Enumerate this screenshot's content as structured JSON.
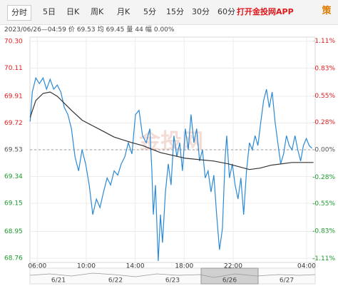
{
  "tabs": [
    "分时",
    "5日",
    "日K",
    "周K",
    "月K",
    "5分",
    "15分",
    "30分",
    "60分"
  ],
  "app_link": "打开金投网APP",
  "strategy_icon": "策",
  "info": {
    "time": "2023/06/26—04:59",
    "items": [
      {
        "label": "价",
        "value": 69.53
      },
      {
        "label": "均",
        "value": 69.45
      },
      {
        "label": "量",
        "value": 44
      },
      {
        "label": "幅",
        "value": "0.00%"
      }
    ]
  },
  "chart_data": {
    "type": "line",
    "watermark": "金投网",
    "xlim": [
      -0.6,
      22.7
    ],
    "xticks": [
      {
        "value": 0,
        "label": "06:00"
      },
      {
        "value": 4,
        "label": "10:00"
      },
      {
        "value": 8,
        "label": "14:00"
      },
      {
        "value": 12,
        "label": "18:00"
      },
      {
        "value": 16,
        "label": "22:00"
      },
      {
        "value": 22,
        "label": "04:00"
      }
    ],
    "ylim": [
      68.73,
      70.33
    ],
    "yticks": [
      {
        "value": 70.3,
        "label": "70.30"
      },
      70.11,
      69.91,
      69.72,
      69.53,
      69.34,
      69.15,
      68.95,
      68.76
    ],
    "y2lim": [
      -1.15,
      1.15
    ],
    "y2ticks": [
      {
        "value": 1.11,
        "label": "1.11%"
      },
      {
        "value": 0.83,
        "label": "0.83%"
      },
      {
        "value": 0.55,
        "label": "0.55%"
      },
      {
        "value": 0.28,
        "label": "0.28%"
      },
      {
        "value": 0,
        "label": "0.00%"
      },
      {
        "value": -0.28,
        "label": "-0.28%"
      },
      {
        "value": -0.55,
        "label": "-0.55%"
      },
      {
        "value": -0.83,
        "label": "-0.83%"
      },
      {
        "value": -1.11,
        "label": "-1.11%"
      }
    ],
    "baseline": 69.53,
    "up_color": "#e0191d",
    "down_color": "#1a9a2a",
    "flat_color": "#555555",
    "grid": true,
    "series": [
      {
        "name": "价",
        "color": "#2b8ad6",
        "x": [
          -0.58,
          -0.41,
          -0.12,
          0.17,
          0.47,
          0.76,
          1.05,
          1.34,
          1.63,
          1.92,
          2.21,
          2.5,
          2.79,
          3.08,
          3.37,
          3.66,
          3.95,
          4.24,
          4.53,
          4.83,
          5.12,
          5.41,
          5.7,
          5.99,
          6.28,
          6.57,
          6.86,
          7.15,
          7.44,
          7.73,
          8.02,
          8.31,
          8.6,
          8.9,
          9.19,
          9.36,
          9.48,
          9.65,
          9.88,
          10.06,
          10.23,
          10.47,
          10.7,
          10.93,
          11.16,
          11.4,
          11.63,
          11.86,
          12.09,
          12.33,
          12.56,
          12.79,
          13.02,
          13.26,
          13.49,
          13.72,
          13.95,
          14.19,
          14.42,
          14.65,
          14.88,
          15.12,
          15.35,
          15.47,
          15.7,
          15.93,
          16.16,
          16.4,
          16.63,
          16.86,
          17.09,
          17.33,
          17.56,
          17.79,
          18.02,
          18.26,
          18.49,
          18.72,
          18.95,
          19.19,
          19.42,
          19.65,
          19.88,
          20.12,
          20.35,
          20.58,
          20.81,
          21.05,
          21.28,
          21.51,
          21.74,
          21.98,
          22.21,
          22.44
        ],
        "values": [
          69.73,
          69.94,
          70.04,
          70.0,
          70.04,
          69.96,
          70.03,
          69.96,
          69.99,
          69.94,
          69.83,
          69.78,
          69.68,
          69.48,
          69.38,
          69.53,
          69.43,
          69.28,
          69.07,
          69.18,
          69.12,
          69.23,
          69.33,
          69.28,
          69.38,
          69.35,
          69.43,
          69.48,
          69.58,
          69.5,
          69.78,
          69.81,
          69.63,
          69.58,
          69.68,
          69.38,
          69.07,
          69.28,
          68.74,
          69.07,
          68.87,
          69.23,
          69.43,
          69.28,
          69.63,
          69.48,
          69.58,
          69.38,
          69.68,
          69.53,
          69.78,
          69.58,
          69.68,
          69.45,
          69.53,
          69.33,
          69.38,
          69.23,
          69.35,
          69.07,
          68.82,
          68.97,
          69.48,
          69.63,
          69.33,
          69.43,
          69.28,
          69.18,
          69.33,
          69.07,
          69.38,
          69.58,
          69.53,
          69.63,
          69.56,
          69.73,
          69.88,
          69.96,
          69.83,
          69.94,
          69.73,
          69.58,
          69.43,
          69.5,
          69.63,
          69.56,
          69.53,
          69.63,
          69.53,
          69.45,
          69.56,
          69.61,
          69.56,
          69.54
        ]
      },
      {
        "name": "均",
        "color": "#333333",
        "x": [
          -0.58,
          -0.12,
          0.47,
          1.05,
          1.63,
          2.21,
          2.79,
          3.66,
          4.53,
          5.41,
          6.28,
          7.73,
          8.6,
          10.06,
          12.09,
          14.42,
          15.58,
          17.33,
          18.2,
          19.07,
          20.81,
          22.56
        ],
        "values": [
          69.76,
          69.88,
          69.93,
          69.94,
          69.91,
          69.86,
          69.81,
          69.74,
          69.7,
          69.66,
          69.62,
          69.58,
          69.56,
          69.51,
          69.47,
          69.45,
          69.43,
          69.39,
          69.4,
          69.42,
          69.44,
          69.44
        ]
      }
    ],
    "navigator": {
      "labels": [
        "6/21",
        "6/22",
        "6/23",
        "6/26",
        "6/27"
      ],
      "selected": 3
    }
  }
}
